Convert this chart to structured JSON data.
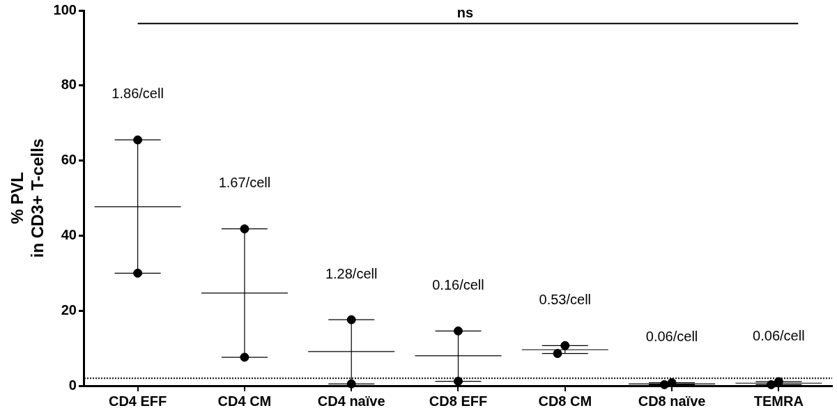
{
  "chart_data": {
    "type": "scatter",
    "ylabel": "% PVL\nin CD3+ T-cells",
    "categories": [
      "CD4 EFF",
      "CD4 CM",
      "CD4 naïve",
      "CD8 EFF",
      "CD8 CM",
      "CD8 naïve",
      "TEMRA"
    ],
    "series": [
      {
        "type": "scatter",
        "marker": "circle",
        "color": "#000000",
        "x": [
          "CD4 EFF",
          "CD4 EFF",
          "CD4 CM",
          "CD4 CM",
          "CD4 naïve",
          "CD4 naïve",
          "CD8 EFF",
          "CD8 EFF",
          "CD8 CM",
          "CD8 CM",
          "CD8 naïve",
          "CD8 naïve",
          "TEMRA",
          "TEMRA"
        ],
        "values": [
          65.5,
          30,
          41.8,
          7.6,
          17.6,
          0.5,
          14.6,
          1.2,
          8.6,
          10.7,
          0.3,
          0.8,
          0.3,
          1.1
        ]
      },
      {
        "type": "box",
        "color": "#000000",
        "boxes": [
          {
            "low": 30,
            "q1": 47.7,
            "median": 47.7,
            "q3": 47.7,
            "high": 65.5
          },
          {
            "low": 7.6,
            "q1": 24.7,
            "median": 24.7,
            "q3": 24.7,
            "high": 41.8
          },
          {
            "low": 0.5,
            "q1": 9.1,
            "median": 9.1,
            "q3": 9.1,
            "high": 17.6
          },
          {
            "low": 1.2,
            "q1": 8,
            "median": 8,
            "q3": 8,
            "high": 14.6
          },
          {
            "low": 8.6,
            "q1": 9.6,
            "median": 9.6,
            "q3": 9.6,
            "high": 10.7
          },
          {
            "low": 0.3,
            "q1": 0.5,
            "median": 0.5,
            "q3": 0.5,
            "high": 0.8
          },
          {
            "low": 0.3,
            "q1": 0.7,
            "median": 0.7,
            "q3": 0.7,
            "high": 1.1
          }
        ]
      }
    ],
    "ylim": [
      0,
      100
    ],
    "yticks": [
      0,
      20,
      40,
      60,
      80,
      100
    ],
    "grid": false,
    "legend": false,
    "ref_lines": [
      {
        "axis": "y",
        "value": 2,
        "line_style": "dotted",
        "color": "#000000"
      },
      {
        "axis": "y",
        "value": 96.5,
        "label": "ns",
        "color": "#000000"
      }
    ],
    "annotations": [
      "1.86/cell",
      "1.67/cell",
      "1.28/cell",
      "0.16/cell",
      "0.53/cell",
      "0.06/cell",
      "0.06/cell"
    ]
  }
}
